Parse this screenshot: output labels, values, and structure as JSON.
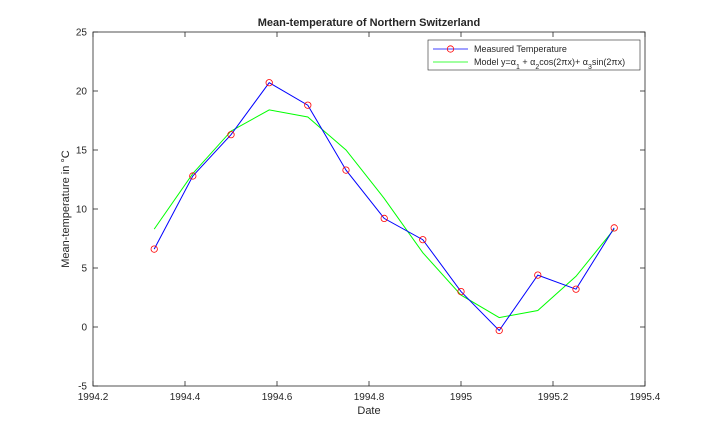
{
  "chart_data": {
    "type": "line",
    "title": "Mean-temperature of Northern Switzerland",
    "xlabel": "Date",
    "ylabel": "Mean-temperature in °C",
    "xlim": [
      1994.2,
      1995.4
    ],
    "ylim": [
      -5,
      25
    ],
    "x_ticks": [
      1994.2,
      1994.4,
      1994.6,
      1994.8,
      1995,
      1995.2,
      1995.4
    ],
    "x_tick_labels": [
      "1994.2",
      "1994.4",
      "1994.6",
      "1994.8",
      "1995",
      "1995.2",
      "1995.4"
    ],
    "y_ticks": [
      -5,
      0,
      5,
      10,
      15,
      20,
      25
    ],
    "y_tick_labels": [
      "-5",
      "0",
      "5",
      "10",
      "15",
      "20",
      "25"
    ],
    "grid": false,
    "legend_position": "top-right",
    "series": [
      {
        "name": "Measured Temperature",
        "color": "#0000ff",
        "marker": "circle",
        "marker_color": "#ff0000",
        "x": [
          1994.333,
          1994.417,
          1994.5,
          1994.583,
          1994.667,
          1994.75,
          1994.833,
          1994.917,
          1995.0,
          1995.083,
          1995.167,
          1995.25,
          1995.333
        ],
        "y": [
          6.6,
          12.8,
          16.3,
          20.7,
          18.8,
          13.3,
          9.2,
          7.4,
          3.0,
          -0.3,
          4.4,
          3.2,
          8.4
        ]
      },
      {
        "name": "Model y=α1 + α2cos(2πx)+ α3sin(2πx)",
        "color": "#00ff00",
        "marker": "none",
        "x": [
          1994.333,
          1994.417,
          1994.5,
          1994.583,
          1994.667,
          1994.75,
          1994.833,
          1994.917,
          1995.0,
          1995.083,
          1995.167,
          1995.25,
          1995.333
        ],
        "y": [
          8.3,
          13.0,
          16.6,
          18.4,
          17.8,
          15.0,
          10.9,
          6.3,
          2.7,
          0.8,
          1.4,
          4.3,
          8.3
        ]
      }
    ],
    "legend": {
      "entries": [
        {
          "label_main": "Measured Temperature"
        },
        {
          "label_main": "Model y=",
          "alpha": "α",
          "sub1": "1",
          "sub2": "2",
          "sub3": "3",
          "plus1": " + ",
          "cos": "cos(2πx)+ ",
          "sin": "sin(2πx)"
        }
      ]
    }
  }
}
